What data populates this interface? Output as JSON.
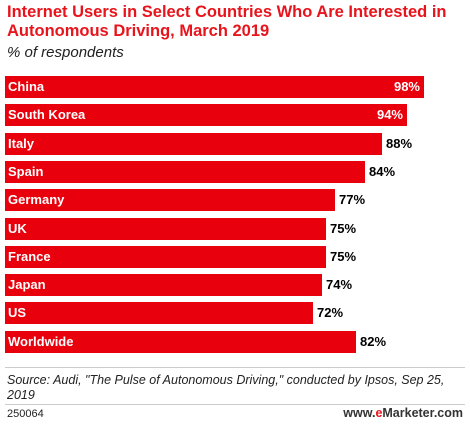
{
  "title": "Internet Users in Select Countries Who Are Interested in Autonomous Driving, March 2019",
  "subtitle": "% of respondents",
  "source": "Source: Audi, \"The Pulse of Autonomous Driving,\" conducted by Ipsos, Sep 25, 2019",
  "chart_id": "250064",
  "brand": {
    "prefix": "www.",
    "e": "e",
    "rest": "Marketer.com"
  },
  "colors": {
    "bar": "#e8000c",
    "title": "#e8141c"
  },
  "chart_data": {
    "type": "bar",
    "orientation": "horizontal",
    "title": "Internet Users in Select Countries Who Are Interested in Autonomous Driving, March 2019",
    "subtitle": "% of respondents",
    "categories": [
      "China",
      "South Korea",
      "Italy",
      "Spain",
      "Germany",
      "UK",
      "France",
      "Japan",
      "US",
      "Worldwide"
    ],
    "values": [
      98,
      94,
      88,
      84,
      77,
      75,
      75,
      74,
      72,
      82
    ],
    "value_suffix": "%",
    "xlim": [
      0,
      100
    ],
    "grid": false,
    "legend": "none"
  }
}
